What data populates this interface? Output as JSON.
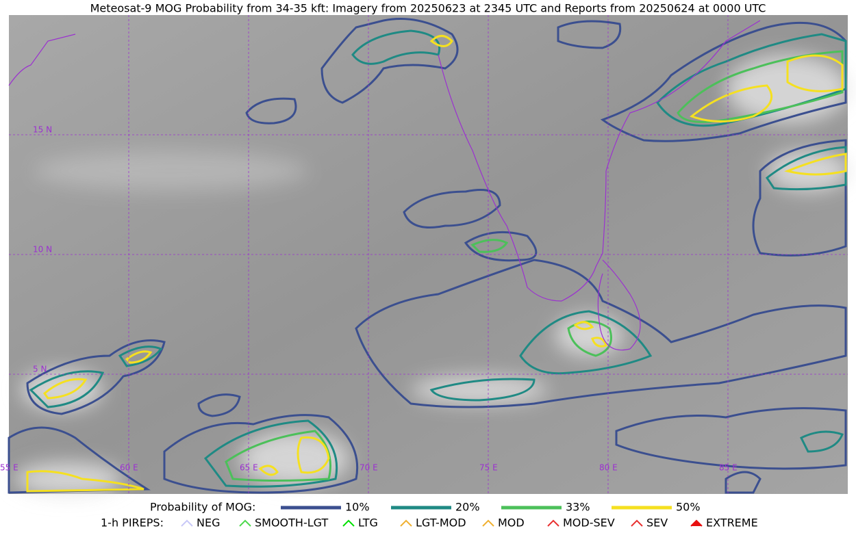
{
  "title": "Meteosat-9 MOG Probability from 34-35 kft: Imagery from 20250623 at 2345 UTC and Reports from 20250624 at 0000 UTC",
  "map": {
    "lat_labels": [
      "15 N",
      "10 N",
      "5 N"
    ],
    "lon_labels": [
      "55 E",
      "60 E",
      "65 E",
      "70 E",
      "75 E",
      "80 E",
      "85 E"
    ]
  },
  "legend": {
    "probability_title": "Probability of MOG:",
    "probability_items": [
      {
        "label": "10%",
        "color": "#3b4f8f"
      },
      {
        "label": "20%",
        "color": "#1f8a84"
      },
      {
        "label": "33%",
        "color": "#4cc05a"
      },
      {
        "label": "50%",
        "color": "#f5e020"
      }
    ],
    "pirep_title": "1-h PIREPS:",
    "pireps": [
      "NEG",
      "SMOOTH-LGT",
      "LTG",
      "LGT-MOD",
      "MOD",
      "MOD-SEV",
      "SEV",
      "EXTREME"
    ]
  }
}
